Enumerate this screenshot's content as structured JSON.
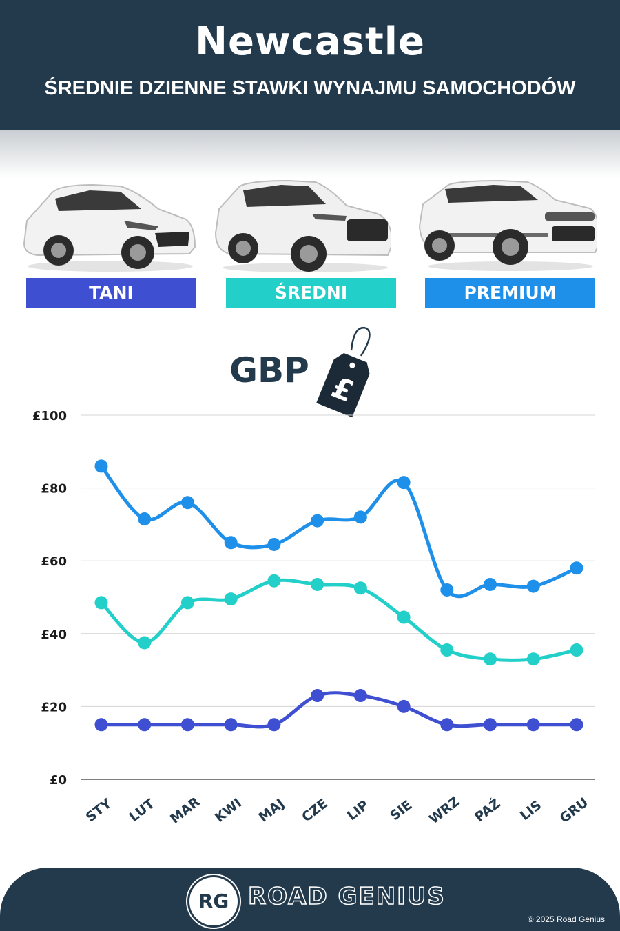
{
  "header": {
    "title": "Newcastle",
    "subtitle": "ŚREDNIE DZIENNE STAWKI WYNAJMU SAMOCHODÓW"
  },
  "categories": [
    {
      "label": "TANI",
      "color": "#3f4fd1",
      "icon": "hatchback-car-icon"
    },
    {
      "label": "ŚREDNI",
      "color": "#22cfc9",
      "icon": "suv-car-icon"
    },
    {
      "label": "PREMIUM",
      "color": "#1e90ea",
      "icon": "luxury-suv-car-icon"
    }
  ],
  "currency": {
    "label": "GBP",
    "symbol": "£",
    "icon": "price-tag-icon"
  },
  "chart_data": {
    "type": "line",
    "categories": [
      "STY",
      "LUT",
      "MAR",
      "KWI",
      "MAJ",
      "CZE",
      "LIP",
      "SIE",
      "WRZ",
      "PAŹ",
      "LIS",
      "GRU"
    ],
    "series": [
      {
        "name": "PREMIUM",
        "color": "#1e90ea",
        "values": [
          86,
          71.5,
          76,
          65,
          64.5,
          71,
          72,
          81.5,
          52,
          53.5,
          53,
          58
        ]
      },
      {
        "name": "ŚREDNI",
        "color": "#22cfc9",
        "values": [
          48.5,
          37.5,
          48.5,
          49.5,
          54.5,
          53.5,
          52.5,
          44.5,
          35.5,
          33,
          33,
          35.5
        ]
      },
      {
        "name": "TANI",
        "color": "#3f4fd1",
        "values": [
          15,
          15,
          15,
          15,
          15,
          23,
          23,
          20,
          15,
          15,
          15,
          15
        ]
      }
    ],
    "ylim": [
      0,
      100
    ],
    "yticks": [
      0,
      20,
      40,
      60,
      80,
      100
    ],
    "ytick_labels": [
      "£0",
      "£20",
      "£40",
      "£60",
      "£80",
      "£100"
    ],
    "grid": true,
    "xlabel": "",
    "ylabel": ""
  },
  "footer": {
    "logo_text": "RG",
    "brand": "ROAD GENIUS",
    "copyright": "© 2025 Road Genius"
  }
}
